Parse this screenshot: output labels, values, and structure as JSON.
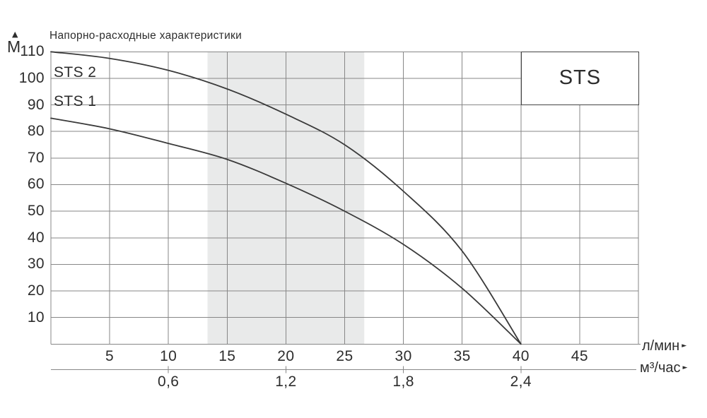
{
  "icons": {
    "up_arrow": "▲",
    "right_arrow": "►"
  },
  "chart_data": {
    "type": "line",
    "title": "Напорно-расходные характеристики",
    "ylabel": "М",
    "xlabel_primary": "л/мин",
    "xlabel_secondary": "м³/час",
    "legend_label": "STS",
    "legend_position": "top-right",
    "grid": true,
    "x": [
      0,
      5,
      10,
      15,
      20,
      25,
      30,
      35,
      40
    ],
    "series": [
      {
        "name": "STS 2",
        "values": [
          110,
          107.5,
          103,
          96,
          86.5,
          75,
          57.5,
          35,
          0
        ]
      },
      {
        "name": "STS 1",
        "values": [
          85,
          81,
          75.5,
          69.5,
          60.5,
          50,
          37.5,
          21,
          0
        ]
      }
    ],
    "xlim": [
      0,
      50
    ],
    "ylim": [
      0,
      110
    ],
    "x_tick_step": 5,
    "y_tick_step": 10,
    "y_ticks": [
      110,
      100,
      90,
      80,
      70,
      60,
      50,
      40,
      30,
      20,
      10
    ],
    "x_ticks_primary": [
      5,
      10,
      15,
      20,
      25,
      30,
      35,
      40,
      45
    ],
    "x_ticks_secondary": [
      {
        "label": "0,6",
        "value": 0.6,
        "lpm": 10
      },
      {
        "label": "1,2",
        "value": 1.2,
        "lpm": 20
      },
      {
        "label": "1,8",
        "value": 1.8,
        "lpm": 30
      },
      {
        "label": "2,4",
        "value": 2.4,
        "lpm": 40
      }
    ],
    "recommended_band_lpm": [
      13.33,
      26.67
    ],
    "colors": {
      "curve": "#3a3a3a",
      "grid": "#878787",
      "band": "#e9eaea",
      "text": "#2d2d2d",
      "box_border": "#444444",
      "background": "#ffffff"
    }
  }
}
